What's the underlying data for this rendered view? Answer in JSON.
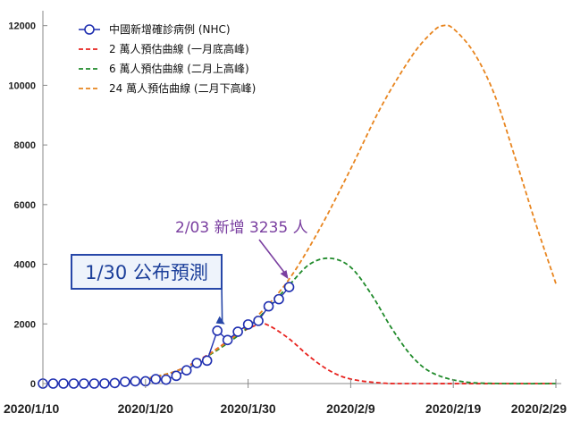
{
  "chart_data": {
    "type": "line",
    "x_ticks": [
      "2020/1/10",
      "2020/1/20",
      "2020/1/30",
      "2020/2/9",
      "2020/2/19",
      "2020/2/29"
    ],
    "ylim": [
      0,
      12500
    ],
    "y_ticks": [
      0,
      2000,
      4000,
      6000,
      8000,
      10000,
      12000
    ],
    "legend": {
      "position": "top-left"
    },
    "series": [
      {
        "name": "中國新增確診病例 (NHC)",
        "style": "markers-line",
        "color": "#1f2fb0",
        "points": [
          {
            "x": "2020/1/10",
            "y": 0
          },
          {
            "x": "2020/1/11",
            "y": 0
          },
          {
            "x": "2020/1/12",
            "y": 0
          },
          {
            "x": "2020/1/13",
            "y": 0
          },
          {
            "x": "2020/1/14",
            "y": 0
          },
          {
            "x": "2020/1/15",
            "y": 0
          },
          {
            "x": "2020/1/16",
            "y": 4
          },
          {
            "x": "2020/1/17",
            "y": 17
          },
          {
            "x": "2020/1/18",
            "y": 59
          },
          {
            "x": "2020/1/19",
            "y": 77
          },
          {
            "x": "2020/1/20",
            "y": 77
          },
          {
            "x": "2020/1/21",
            "y": 149
          },
          {
            "x": "2020/1/22",
            "y": 131
          },
          {
            "x": "2020/1/23",
            "y": 259
          },
          {
            "x": "2020/1/24",
            "y": 444
          },
          {
            "x": "2020/1/25",
            "y": 688
          },
          {
            "x": "2020/1/26",
            "y": 769
          },
          {
            "x": "2020/1/27",
            "y": 1771
          },
          {
            "x": "2020/1/28",
            "y": 1459
          },
          {
            "x": "2020/1/29",
            "y": 1737
          },
          {
            "x": "2020/1/30",
            "y": 1982
          },
          {
            "x": "2020/1/31",
            "y": 2102
          },
          {
            "x": "2020/2/1",
            "y": 2590
          },
          {
            "x": "2020/2/2",
            "y": 2829
          },
          {
            "x": "2020/2/3",
            "y": 3235
          }
        ]
      },
      {
        "name": "2 萬人預估曲線 (一月底高峰)",
        "style": "dashed",
        "color": "#e8231f",
        "points": [
          {
            "x": "2020/1/10",
            "y": 0
          },
          {
            "x": "2020/1/16",
            "y": 20
          },
          {
            "x": "2020/1/20",
            "y": 150
          },
          {
            "x": "2020/1/23",
            "y": 420
          },
          {
            "x": "2020/1/26",
            "y": 950
          },
          {
            "x": "2020/1/29",
            "y": 1650
          },
          {
            "x": "2020/1/31",
            "y": 1980
          },
          {
            "x": "2020/2/1",
            "y": 1950
          },
          {
            "x": "2020/2/3",
            "y": 1500
          },
          {
            "x": "2020/2/5",
            "y": 900
          },
          {
            "x": "2020/2/7",
            "y": 420
          },
          {
            "x": "2020/2/9",
            "y": 150
          },
          {
            "x": "2020/2/12",
            "y": 20
          },
          {
            "x": "2020/2/15",
            "y": 0
          },
          {
            "x": "2020/2/29",
            "y": 0
          }
        ]
      },
      {
        "name": "6 萬人預估曲線 (二月上高峰)",
        "style": "dashed",
        "color": "#1f8a2a",
        "points": [
          {
            "x": "2020/1/10",
            "y": 0
          },
          {
            "x": "2020/1/16",
            "y": 20
          },
          {
            "x": "2020/1/20",
            "y": 160
          },
          {
            "x": "2020/1/24",
            "y": 550
          },
          {
            "x": "2020/1/28",
            "y": 1350
          },
          {
            "x": "2020/1/31",
            "y": 2200
          },
          {
            "x": "2020/2/3",
            "y": 3300
          },
          {
            "x": "2020/2/5",
            "y": 4000
          },
          {
            "x": "2020/2/7",
            "y": 4200
          },
          {
            "x": "2020/2/9",
            "y": 3900
          },
          {
            "x": "2020/2/11",
            "y": 3000
          },
          {
            "x": "2020/2/13",
            "y": 1850
          },
          {
            "x": "2020/2/15",
            "y": 900
          },
          {
            "x": "2020/2/17",
            "y": 350
          },
          {
            "x": "2020/2/20",
            "y": 60
          },
          {
            "x": "2020/2/24",
            "y": 0
          },
          {
            "x": "2020/2/29",
            "y": 0
          }
        ]
      },
      {
        "name": "24 萬人預估曲線 (二月下高峰)",
        "style": "dashed",
        "color": "#e8851f",
        "points": [
          {
            "x": "2020/1/10",
            "y": 0
          },
          {
            "x": "2020/1/16",
            "y": 20
          },
          {
            "x": "2020/1/20",
            "y": 170
          },
          {
            "x": "2020/1/24",
            "y": 550
          },
          {
            "x": "2020/1/28",
            "y": 1400
          },
          {
            "x": "2020/1/31",
            "y": 2300
          },
          {
            "x": "2020/2/3",
            "y": 3500
          },
          {
            "x": "2020/2/6",
            "y": 5200
          },
          {
            "x": "2020/2/9",
            "y": 7200
          },
          {
            "x": "2020/2/12",
            "y": 9300
          },
          {
            "x": "2020/2/15",
            "y": 11000
          },
          {
            "x": "2020/2/17",
            "y": 11800
          },
          {
            "x": "2020/2/18",
            "y": 12000
          },
          {
            "x": "2020/2/19",
            "y": 11900
          },
          {
            "x": "2020/2/21",
            "y": 11100
          },
          {
            "x": "2020/2/23",
            "y": 9700
          },
          {
            "x": "2020/2/25",
            "y": 7600
          },
          {
            "x": "2020/2/27",
            "y": 5400
          },
          {
            "x": "2020/2/29",
            "y": 3350
          }
        ]
      }
    ],
    "annotations": [
      {
        "text": "2/03 新增 3235 人",
        "color": "#7a3fa0",
        "target": {
          "x": "2020/2/3",
          "y": 3235
        }
      },
      {
        "text": "1/30 公布預測",
        "color": "#1c3f9a",
        "boxed": true,
        "target": {
          "x": "2020/1/28",
          "y": 1900
        }
      }
    ]
  }
}
